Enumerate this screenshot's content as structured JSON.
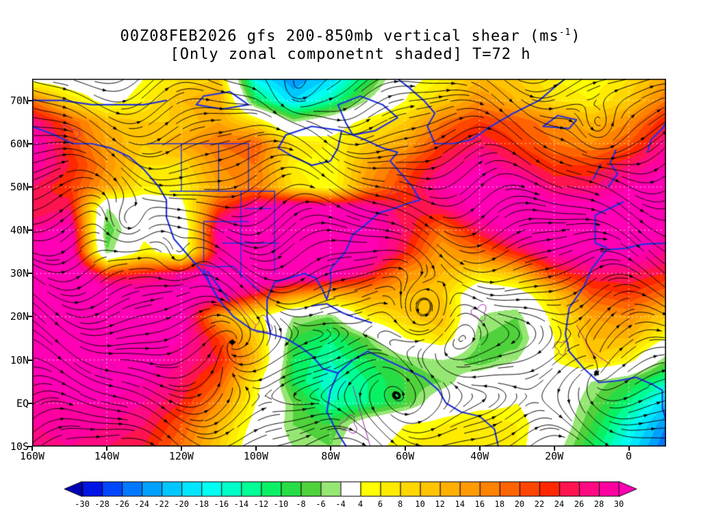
{
  "title": {
    "line1a": "00Z08FEB2026 gfs 200-850mb vertical shear (ms",
    "line1_sup": "-1",
    "line1b": ")",
    "line2": "[Only zonal componetnt shaded] T=72 h"
  },
  "axes": {
    "lat_ticks": [
      {
        "label": "70N",
        "lat": 70
      },
      {
        "label": "60N",
        "lat": 60
      },
      {
        "label": "50N",
        "lat": 50
      },
      {
        "label": "40N",
        "lat": 40
      },
      {
        "label": "30N",
        "lat": 30
      },
      {
        "label": "20N",
        "lat": 20
      },
      {
        "label": "10N",
        "lat": 10
      },
      {
        "label": "EQ",
        "lat": 0
      },
      {
        "label": "10S",
        "lat": -10
      }
    ],
    "lon_ticks": [
      {
        "label": "160W",
        "lon": -160
      },
      {
        "label": "140W",
        "lon": -140
      },
      {
        "label": "120W",
        "lon": -120
      },
      {
        "label": "100W",
        "lon": -100
      },
      {
        "label": "80W",
        "lon": -80
      },
      {
        "label": "60W",
        "lon": -60
      },
      {
        "label": "40W",
        "lon": -40
      },
      {
        "label": "20W",
        "lon": -20
      },
      {
        "label": "0",
        "lon": 0
      }
    ]
  },
  "colorbar": {
    "levels": [
      -30,
      -28,
      -26,
      -24,
      -22,
      -20,
      -18,
      -16,
      -14,
      -12,
      -10,
      -8,
      -6,
      -4,
      4,
      6,
      8,
      10,
      12,
      14,
      16,
      18,
      20,
      22,
      24,
      26,
      28,
      30
    ],
    "labels": [
      "-30",
      "-28",
      "-26",
      "-24",
      "-22",
      "-20",
      "-18",
      "-16",
      "-14",
      "-12",
      "-10",
      "-8",
      "-6",
      "-4",
      "4",
      "6",
      "8",
      "10",
      "12",
      "14",
      "16",
      "18",
      "20",
      "22",
      "24",
      "26",
      "28",
      "30"
    ],
    "colors": {
      "under": "#0000b4",
      "cells": [
        "#0014e6",
        "#0046ff",
        "#0078ff",
        "#00a0ff",
        "#00c8ff",
        "#00e6ff",
        "#00fff0",
        "#00ffc8",
        "#00ff96",
        "#0af064",
        "#28dc46",
        "#50d23c",
        "#96e673",
        "#ffffff",
        "#ffff00",
        "#ffeb00",
        "#ffd700",
        "#ffc300",
        "#ffaf00",
        "#ff9b00",
        "#ff8200",
        "#ff6400",
        "#ff4600",
        "#ff2800",
        "#ff1450",
        "#ff0a82",
        "#ff00a0"
      ],
      "over": "#ff00b4"
    }
  },
  "chart_data": {
    "type": "heatmap",
    "subtype": "filled-contour zonal shear field with streamline overlay",
    "title": "00Z08FEB2026 gfs 200-850mb vertical shear (ms-1)",
    "subtitle": "[Only zonal componetnt shaded] T=72 h",
    "units": "m/s",
    "lon_range": [
      -160,
      10
    ],
    "lat_range": [
      -10,
      75
    ],
    "grid_lons": [
      -160,
      -150,
      -140,
      -130,
      -120,
      -110,
      -100,
      -90,
      -80,
      -70,
      -60,
      -50,
      -40,
      -30,
      -20,
      -10,
      0,
      10
    ],
    "grid_lats": [
      75,
      70,
      65,
      60,
      55,
      50,
      45,
      40,
      35,
      30,
      25,
      20,
      15,
      10,
      5,
      0,
      -5,
      -10
    ],
    "values": [
      [
        2,
        0,
        0,
        4,
        8,
        10,
        -18,
        -24,
        -20,
        -10,
        2,
        6,
        12,
        10,
        6,
        4,
        8,
        14
      ],
      [
        18,
        8,
        2,
        6,
        12,
        14,
        -10,
        -20,
        -14,
        -4,
        4,
        10,
        16,
        12,
        8,
        6,
        10,
        18
      ],
      [
        28,
        20,
        12,
        10,
        10,
        14,
        8,
        -4,
        0,
        6,
        10,
        18,
        22,
        20,
        16,
        12,
        16,
        24
      ],
      [
        32,
        22,
        14,
        10,
        14,
        18,
        20,
        8,
        6,
        10,
        14,
        22,
        26,
        22,
        18,
        16,
        20,
        28
      ],
      [
        30,
        24,
        16,
        8,
        8,
        16,
        18,
        6,
        4,
        14,
        20,
        26,
        30,
        26,
        22,
        22,
        26,
        30
      ],
      [
        26,
        22,
        14,
        6,
        6,
        14,
        18,
        8,
        4,
        16,
        22,
        30,
        32,
        32,
        26,
        26,
        30,
        32
      ],
      [
        24,
        26,
        -4,
        0,
        2,
        22,
        30,
        34,
        32,
        30,
        24,
        26,
        32,
        34,
        32,
        32,
        34,
        34
      ],
      [
        28,
        32,
        -8,
        2,
        -2,
        30,
        36,
        34,
        32,
        32,
        26,
        18,
        26,
        32,
        34,
        34,
        34,
        30
      ],
      [
        34,
        34,
        -6,
        6,
        0,
        28,
        36,
        36,
        34,
        32,
        24,
        14,
        18,
        24,
        30,
        32,
        32,
        28
      ],
      [
        36,
        36,
        22,
        24,
        28,
        32,
        36,
        34,
        32,
        26,
        16,
        12,
        8,
        12,
        22,
        26,
        26,
        24
      ],
      [
        36,
        36,
        34,
        32,
        32,
        30,
        24,
        16,
        12,
        14,
        12,
        10,
        -2,
        0,
        10,
        20,
        22,
        18
      ],
      [
        36,
        36,
        36,
        34,
        32,
        14,
        6,
        -4,
        -6,
        6,
        10,
        12,
        -4,
        -6,
        6,
        14,
        16,
        10
      ],
      [
        34,
        36,
        36,
        34,
        30,
        22,
        10,
        -8,
        -12,
        -6,
        4,
        8,
        -6,
        -8,
        4,
        12,
        12,
        4
      ],
      [
        32,
        34,
        34,
        32,
        28,
        24,
        12,
        -10,
        -14,
        -10,
        -6,
        -4,
        -8,
        -4,
        4,
        10,
        6,
        -6
      ],
      [
        30,
        32,
        32,
        30,
        26,
        20,
        6,
        -10,
        -16,
        -12,
        -8,
        -6,
        0,
        2,
        0,
        -4,
        -8,
        -14
      ],
      [
        28,
        30,
        30,
        28,
        24,
        16,
        4,
        -6,
        -14,
        -12,
        -8,
        0,
        2,
        4,
        0,
        -6,
        -12,
        -20
      ],
      [
        28,
        30,
        28,
        26,
        20,
        12,
        2,
        -6,
        -8,
        0,
        4,
        6,
        8,
        6,
        0,
        -8,
        -16,
        -24
      ],
      [
        26,
        28,
        26,
        24,
        18,
        10,
        0,
        -4,
        -6,
        2,
        6,
        8,
        8,
        6,
        -2,
        -10,
        -18,
        -26
      ]
    ]
  }
}
